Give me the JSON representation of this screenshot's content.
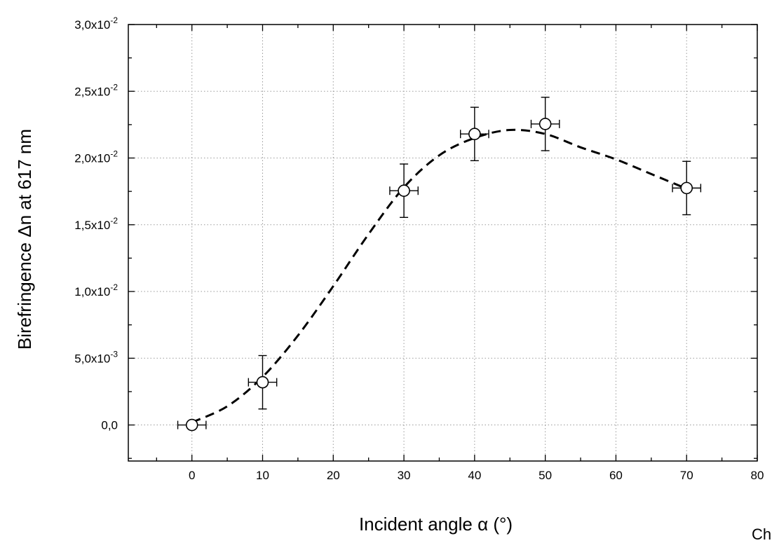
{
  "chart_data": {
    "type": "scatter",
    "xlabel": "Incident angle α (°)",
    "ylabel": "Birefringence Δn at 617 nm",
    "xlim": [
      -9,
      80
    ],
    "ylim": [
      -0.0027,
      0.03
    ],
    "grid": "dotted",
    "x_ticks": [
      0,
      10,
      20,
      30,
      40,
      50,
      60,
      70,
      80
    ],
    "x_tick_labels": [
      "0",
      "10",
      "20",
      "30",
      "40",
      "50",
      "60",
      "70",
      "80"
    ],
    "y_ticks": [
      0,
      0.005,
      0.01,
      0.015,
      0.02,
      0.025,
      0.03
    ],
    "y_tick_labels": [
      {
        "mant": "0,0",
        "exp": ""
      },
      {
        "mant": "5,0x10",
        "exp": "-3"
      },
      {
        "mant": "1,0x10",
        "exp": "-2"
      },
      {
        "mant": "1,5x10",
        "exp": "-2"
      },
      {
        "mant": "2,0x10",
        "exp": "-2"
      },
      {
        "mant": "2,5x10",
        "exp": "-2"
      },
      {
        "mant": "3,0x10",
        "exp": "-2"
      }
    ],
    "points": [
      {
        "x": 0,
        "y": 0.0,
        "xerr": 2,
        "yerr": 0.0
      },
      {
        "x": 10,
        "y": 0.0032,
        "xerr": 2,
        "yerr": 0.002
      },
      {
        "x": 30,
        "y": 0.01755,
        "xerr": 2,
        "yerr": 0.002
      },
      {
        "x": 40,
        "y": 0.0218,
        "xerr": 2,
        "yerr": 0.002
      },
      {
        "x": 50,
        "y": 0.02255,
        "xerr": 2,
        "yerr": 0.002
      },
      {
        "x": 70,
        "y": 0.01775,
        "xerr": 2,
        "yerr": 0.002
      }
    ],
    "fit_curve": {
      "style": "dashed",
      "x": [
        0,
        5,
        10,
        15,
        20,
        25,
        30,
        35,
        40,
        45,
        50,
        55,
        60,
        65,
        70
      ],
      "y": [
        0.0002,
        0.0014,
        0.0036,
        0.0067,
        0.0104,
        0.0143,
        0.0178,
        0.0202,
        0.0215,
        0.0221,
        0.0218,
        0.0208,
        0.0199,
        0.0188,
        0.0177
      ]
    },
    "marker": {
      "shape": "open-circle",
      "color": "#000000"
    }
  },
  "corner_note": "Ch"
}
